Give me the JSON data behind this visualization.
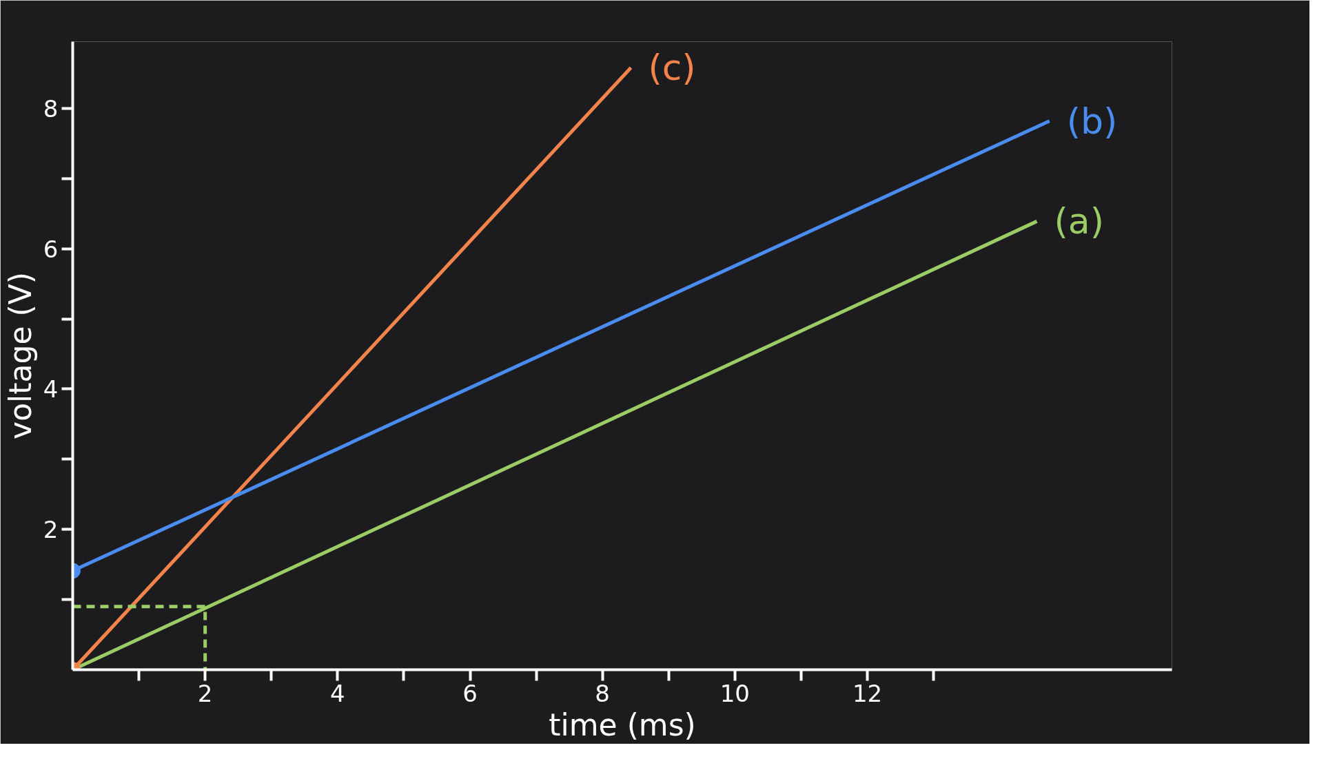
{
  "chart_data": {
    "type": "line",
    "xlabel": "time (ms)",
    "ylabel": "voltage (V)",
    "xlim": [
      0,
      16.6
    ],
    "ylim": [
      0,
      8.95
    ],
    "xticks": [
      2,
      4,
      6,
      8,
      10,
      12
    ],
    "yticks": [
      2,
      4,
      6,
      8
    ],
    "grid": false,
    "series": [
      {
        "name": "(c)",
        "color": "#f5844c",
        "x": [
          0,
          8.43
        ],
        "values": [
          0,
          8.58
        ]
      },
      {
        "name": "(b)",
        "color": "#4a8cf0",
        "x": [
          0,
          14.75
        ],
        "values": [
          1.41,
          7.82
        ]
      },
      {
        "name": "(a)",
        "color": "#9ccc65",
        "x": [
          0,
          14.56
        ],
        "values": [
          0,
          6.39
        ]
      },
      {
        "type": "line",
        "line_style": "dashed",
        "color": "#9ccc65",
        "x": [
          0,
          2,
          2
        ],
        "values": [
          0.9,
          0.9,
          0
        ]
      },
      {
        "type": "scatter",
        "marker": "circle",
        "color": "#4a8cf0",
        "x": [
          0
        ],
        "values": [
          1.41
        ]
      },
      {
        "type": "scatter",
        "marker": "circle",
        "color": "#f5844c",
        "x": [
          0
        ],
        "values": [
          0
        ]
      }
    ]
  }
}
